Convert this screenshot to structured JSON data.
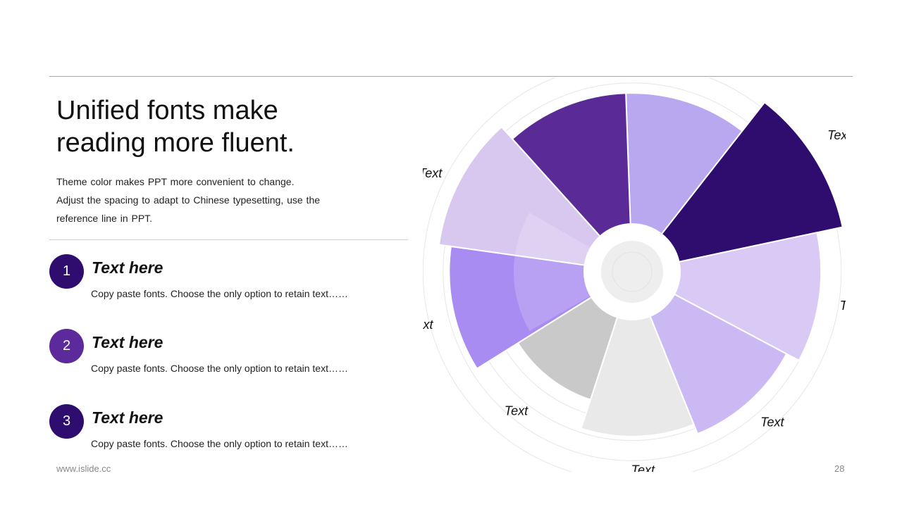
{
  "slide": {
    "title_lines": [
      "Unified fonts make",
      "reading more fluent."
    ],
    "description_lines": [
      "Theme color makes PPT more convenient to change.",
      "Adjust the spacing to adapt to Chinese typesetting, use the",
      "reference line in PPT."
    ],
    "items": [
      {
        "number": "1",
        "title": "Text here",
        "desc": "Copy paste fonts. Choose the only option to retain text……",
        "color": "#2f0d6e"
      },
      {
        "number": "2",
        "title": "Text here",
        "desc": "Copy paste fonts. Choose the only option to retain text……",
        "color": "#5c2a9a"
      },
      {
        "number": "3",
        "title": "Text here",
        "desc": "Copy paste fonts. Choose the only option to retain text……",
        "color": "#2f0d6e"
      }
    ],
    "footer_url": "www.islide.cc",
    "page_number": "28"
  },
  "chart_data": {
    "type": "polar-area",
    "rings": 8,
    "segments": [
      {
        "label": "Text",
        "value": 6.5,
        "color": "#b9a8f0"
      },
      {
        "label": "Text",
        "value": 8.3,
        "color": "#2e0d6e"
      },
      {
        "label": "Text",
        "value": 7.0,
        "color": "#d8c9f5"
      },
      {
        "label": "Text",
        "value": 6.3,
        "color": "#cbb9f4"
      },
      {
        "label": "Text",
        "value": 5.8,
        "color": "#e9e9e9"
      },
      {
        "label": "Text",
        "value": 4.3,
        "color": "#c9c9c9"
      },
      {
        "label": "Text",
        "value": 6.7,
        "color": "#a98cf1"
      },
      {
        "label": "Text",
        "value": 7.3,
        "color": "#d8c7ef"
      },
      {
        "label": "Text",
        "value": 6.5,
        "color": "#5a2a96"
      }
    ],
    "label_positions": [
      "top",
      "top-right",
      "right",
      "right-lower",
      "bottom-right",
      "bottom",
      "bottom-left",
      "left",
      "top"
    ],
    "colors": {
      "grid": "#e6e6e6",
      "center_ring": "#ffffff",
      "center_fill": "#eeeeee",
      "overlay": "#ffffff"
    }
  }
}
